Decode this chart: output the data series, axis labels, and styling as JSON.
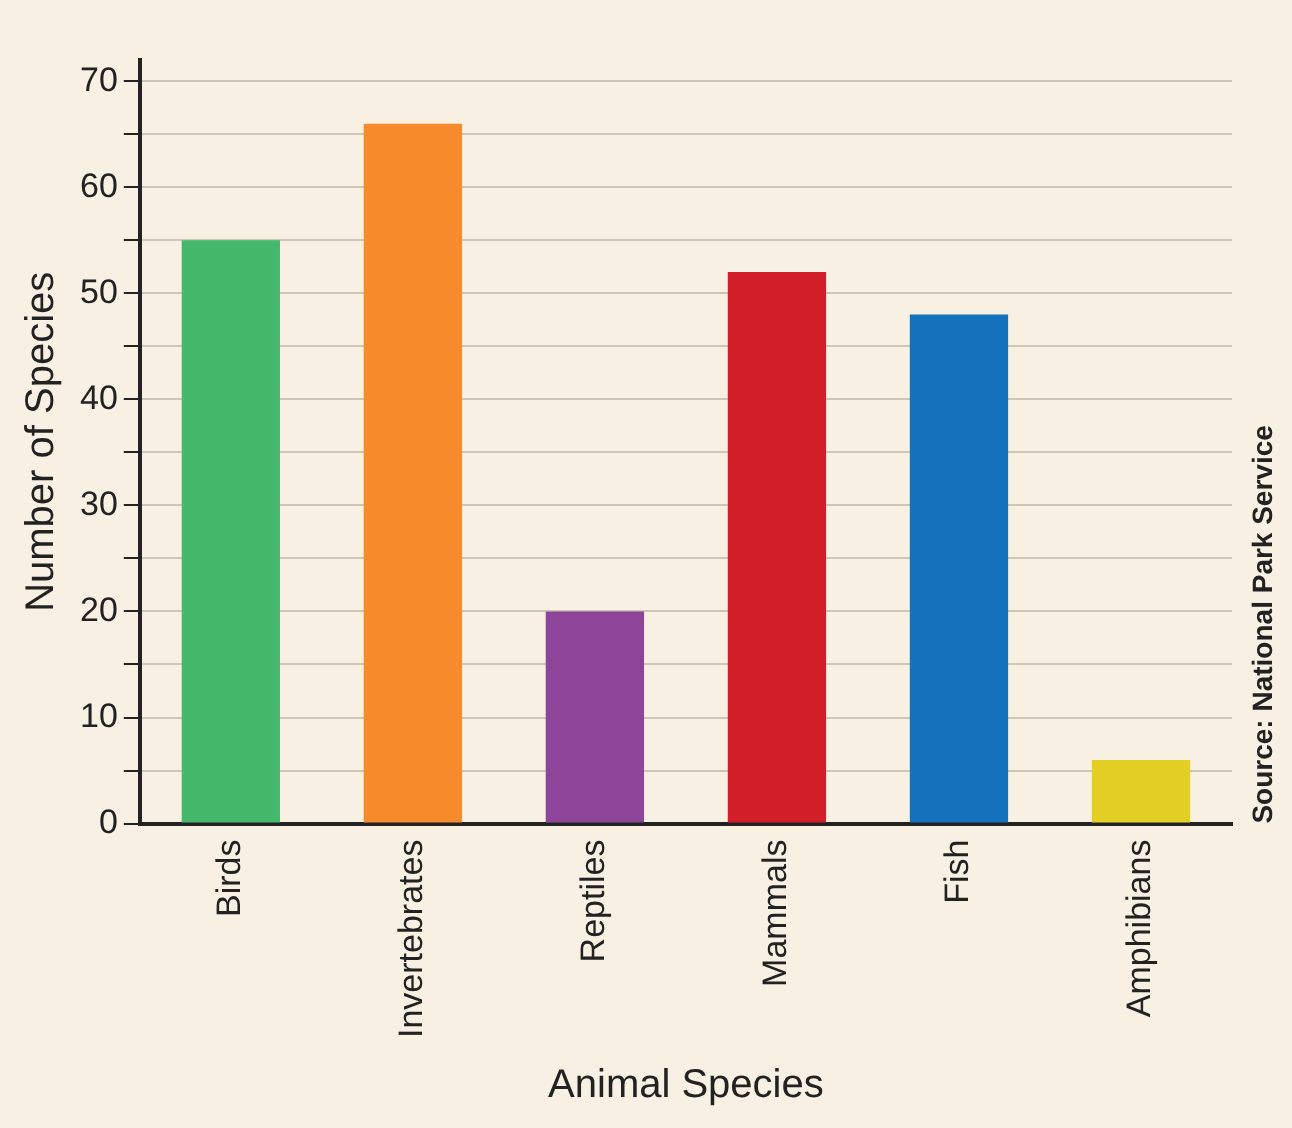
{
  "chart_data": {
    "type": "bar",
    "xlabel": "Animal Species",
    "ylabel": "Number of Species",
    "categories": [
      "Birds",
      "Invertebrates",
      "Reptiles",
      "Mammals",
      "Fish",
      "Amphibians"
    ],
    "values": [
      55,
      66,
      20,
      52,
      48,
      6
    ],
    "colors": [
      "#45b86c",
      "#f68b2c",
      "#8e4499",
      "#d31f2a",
      "#1471bb",
      "#e3cf23"
    ],
    "ylim": [
      0,
      72
    ],
    "yticks": [
      0,
      {
        "value": 5,
        "label": null
      },
      10,
      {
        "value": 15,
        "label": null
      },
      20,
      {
        "value": 25,
        "label": null
      },
      30,
      {
        "value": 35,
        "label": null
      },
      40,
      {
        "value": 45,
        "label": null
      },
      50,
      {
        "value": 55,
        "label": null
      },
      60,
      {
        "value": 65,
        "label": null
      },
      70
    ],
    "grid": "y",
    "legend": false,
    "annotations": [
      "Source: National Park Service"
    ]
  }
}
